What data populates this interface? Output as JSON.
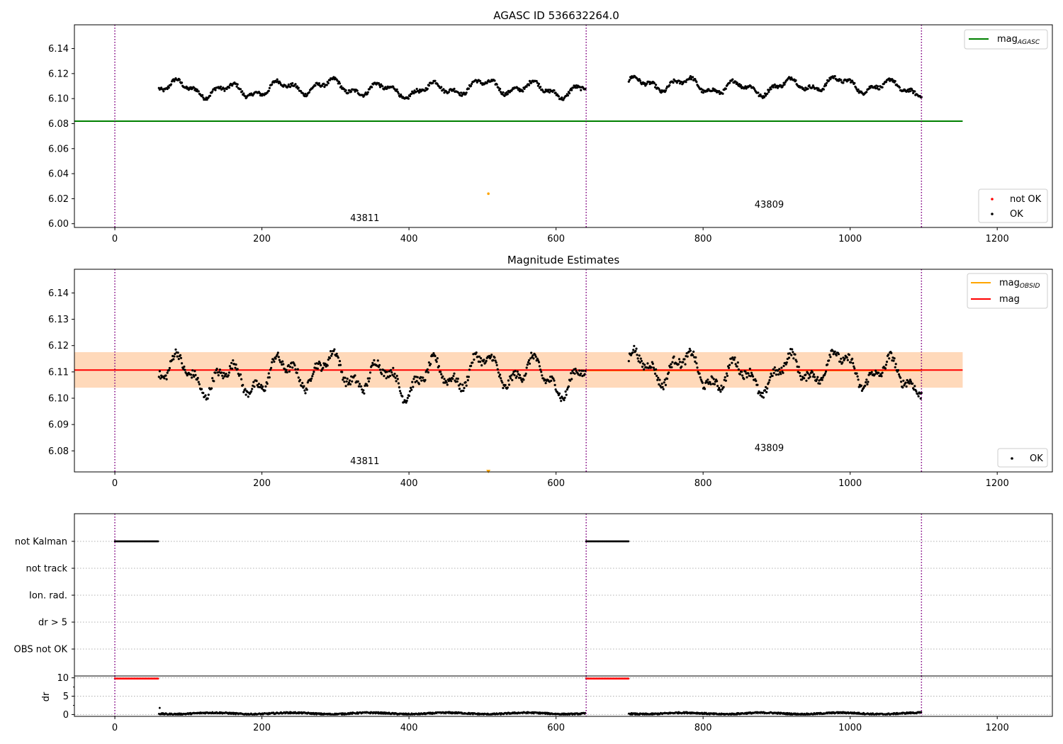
{
  "chart_data": [
    {
      "type": "scatter",
      "title": "AGASC ID 536632264.0",
      "xlim": [
        -55,
        1275
      ],
      "ylim": [
        5.997,
        6.159
      ],
      "xticks": [
        0,
        200,
        400,
        600,
        800,
        1000,
        1200
      ],
      "yticks": [
        6.0,
        6.02,
        6.04,
        6.06,
        6.08,
        6.1,
        6.12,
        6.14
      ],
      "ytick_labels": [
        "6.00",
        "6.02",
        "6.04",
        "6.06",
        "6.08",
        "6.10",
        "6.12",
        "6.14"
      ],
      "obsid_boundaries": [
        0,
        641,
        1097
      ],
      "obsid_labels": [
        {
          "text": "43811",
          "x": 320,
          "y": 6.002
        },
        {
          "text": "43809",
          "x": 870,
          "y": 6.013
        }
      ],
      "hlines": [
        {
          "name": "mag_AGASC",
          "y": 6.082,
          "x0": -55,
          "x1": 1153,
          "color": "#008000"
        }
      ],
      "series": [
        {
          "name": "OK",
          "color": "#000000",
          "segments": [
            {
              "x0": 60,
              "x1": 640,
              "n": 560,
              "base": 6.108,
              "amp": 0.008
            },
            {
              "x0": 699,
              "x1": 1097,
              "n": 390,
              "base": 6.11,
              "amp": 0.008
            }
          ]
        },
        {
          "name": "not OK",
          "color": "#ff0000",
          "segments": []
        },
        {
          "name": "outlier",
          "color": "#ffa500",
          "points": [
            {
              "x": 508,
              "y": 6.024
            }
          ]
        }
      ],
      "legend": [
        {
          "label": "mag",
          "sub": "AGASC",
          "color": "#008000",
          "kind": "line",
          "placement": "top-right"
        },
        {
          "label": "not OK",
          "color": "#ff0000",
          "kind": "dot",
          "placement": "bottom-right"
        },
        {
          "label": "OK",
          "color": "#000000",
          "kind": "dot",
          "placement": "bottom-right"
        }
      ]
    },
    {
      "type": "scatter",
      "title": "Magnitude Estimates",
      "xlim": [
        -55,
        1275
      ],
      "ylim": [
        6.072,
        6.149
      ],
      "xticks": [
        0,
        200,
        400,
        600,
        800,
        1000,
        1200
      ],
      "yticks": [
        6.08,
        6.09,
        6.1,
        6.11,
        6.12,
        6.13,
        6.14
      ],
      "ytick_labels": [
        "6.08",
        "6.09",
        "6.10",
        "6.11",
        "6.12",
        "6.13",
        "6.14"
      ],
      "obsid_boundaries": [
        0,
        641,
        1097
      ],
      "obsid_labels": [
        {
          "text": "43811",
          "x": 320,
          "y": 6.075
        },
        {
          "text": "43809",
          "x": 870,
          "y": 6.08
        }
      ],
      "bands": [
        {
          "name": "mag range",
          "y0": 6.104,
          "y1": 6.1175,
          "x0": -55,
          "x1": 1153,
          "color": "#ffb6c1",
          "opacity": 0.35
        },
        {
          "name": "mag_OBSID range",
          "y0": 6.104,
          "y1": 6.1175,
          "x0": -55,
          "x1": 1153,
          "color": "#ffa500",
          "opacity": 0.2
        }
      ],
      "hlines": [
        {
          "name": "mag_OBSID",
          "y": 6.1105,
          "x0": 641,
          "x1": 1097,
          "color": "#ffa500"
        },
        {
          "name": "mag",
          "y": 6.1107,
          "x0": -55,
          "x1": 1153,
          "color": "#ff0000"
        }
      ],
      "series": [
        {
          "name": "OK",
          "color": "#000000",
          "segments": [
            {
              "x0": 60,
              "x1": 640,
              "n": 560,
              "base": 6.109,
              "amp": 0.009
            },
            {
              "x0": 699,
              "x1": 1097,
              "n": 390,
              "base": 6.11,
              "amp": 0.009
            }
          ]
        },
        {
          "name": "outlier",
          "color": "#ffa500",
          "marker": "triangle",
          "points": [
            {
              "x": 508,
              "y": 6.072
            }
          ]
        }
      ],
      "legend": [
        {
          "label": "mag",
          "sub": "OBSID",
          "color": "#ffa500",
          "kind": "line",
          "placement": "top-right"
        },
        {
          "label": "mag",
          "color": "#ff0000",
          "kind": "line",
          "placement": "top-right"
        },
        {
          "label": "OK",
          "color": "#000000",
          "kind": "dot",
          "placement": "bottom-right"
        }
      ]
    },
    {
      "type": "scatter",
      "title": "",
      "xlim": [
        -55,
        1275
      ],
      "flag_rows": [
        "not Kalman",
        "not track",
        "Ion. rad.",
        "dr > 5",
        "OBS not OK"
      ],
      "obsid_boundaries": [
        0,
        641,
        1097
      ],
      "series": [
        {
          "name": "not Kalman",
          "color": "#000000",
          "ranges": [
            [
              0,
              60
            ],
            [
              641,
              699
            ]
          ]
        }
      ]
    },
    {
      "type": "scatter",
      "title": "",
      "ylabel": "dr",
      "xlim": [
        -55,
        1275
      ],
      "ylim": [
        -0.5,
        10.5
      ],
      "xticks": [
        0,
        200,
        400,
        600,
        800,
        1000,
        1200
      ],
      "yticks": [
        0,
        5,
        10
      ],
      "ytick_labels": [
        "0",
        "5",
        "10"
      ],
      "obsid_boundaries": [
        0,
        641,
        1097
      ],
      "series": [
        {
          "name": "dr not OK",
          "color": "#ff0000",
          "y": 9.8,
          "ranges": [
            [
              0,
              60
            ],
            [
              641,
              699
            ]
          ]
        },
        {
          "name": "dr OK",
          "color": "#000000",
          "ranges": [
            [
              60,
              640
            ],
            [
              699,
              1097
            ]
          ],
          "base": 0.3,
          "amp": 0.4
        },
        {
          "name": "dr start",
          "color": "#000000",
          "points": [
            {
              "x": 61,
              "y": 1.8
            }
          ]
        }
      ]
    }
  ]
}
